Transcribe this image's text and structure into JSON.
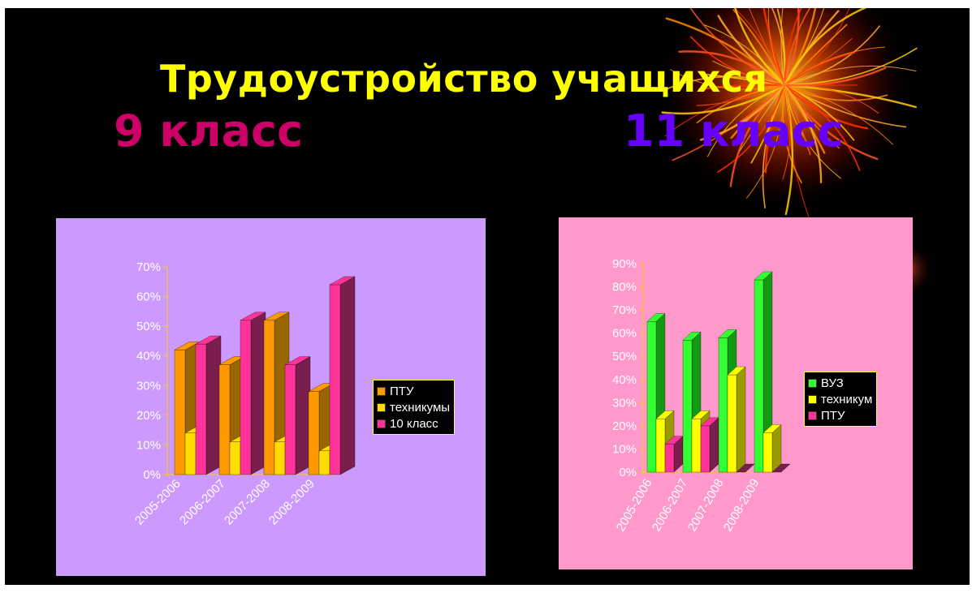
{
  "slide": {
    "title": "Трудоустройство учащихся",
    "subtitle_left": "9 класс",
    "subtitle_right": "11 класс",
    "colors": {
      "background": "#000000",
      "title": "#ffff00",
      "subtitle_left": "#cc0066",
      "subtitle_right": "#6600ff"
    }
  },
  "chart_data": [
    {
      "type": "bar",
      "style": "3d-column",
      "background": "#cc99ff",
      "legend_position": "right",
      "grid": false,
      "ylim": [
        0,
        0.7
      ],
      "yticks": [
        "0%",
        "10%",
        "20%",
        "30%",
        "40%",
        "50%",
        "60%",
        "70%"
      ],
      "categories": [
        "2005-2006",
        "2006-2007",
        "2007-2008",
        "2008-2009"
      ],
      "series": [
        {
          "name": "ПТУ",
          "values": [
            0.42,
            0.37,
            0.52,
            0.28
          ],
          "color": "#ff9900",
          "side": "#996600"
        },
        {
          "name": "техникумы",
          "values": [
            0.14,
            0.11,
            0.11,
            0.08
          ],
          "color": "#ffdd00",
          "side": "#b39b00"
        },
        {
          "name": "10 класс",
          "values": [
            0.44,
            0.52,
            0.37,
            0.64
          ],
          "color": "#ff3399",
          "side": "#7a1f4d"
        }
      ]
    },
    {
      "type": "bar",
      "style": "3d-column",
      "background": "#ff99cc",
      "legend_position": "right",
      "grid": false,
      "ylim": [
        0,
        0.9
      ],
      "yticks": [
        "0%",
        "10%",
        "20%",
        "30%",
        "40%",
        "50%",
        "60%",
        "70%",
        "80%",
        "90%"
      ],
      "categories": [
        "2005-2006",
        "2006-2007",
        "2007-2008",
        "2008-2009"
      ],
      "series": [
        {
          "name": "ВУЗ",
          "values": [
            0.65,
            0.57,
            0.58,
            0.83
          ],
          "color": "#33ff33",
          "side": "#119911"
        },
        {
          "name": "техникум",
          "values": [
            0.23,
            0.23,
            0.42,
            0.17
          ],
          "color": "#ffff00",
          "side": "#999900"
        },
        {
          "name": "ПТУ",
          "values": [
            0.12,
            0.2,
            0.0,
            0.0
          ],
          "color": "#ff3399",
          "side": "#7a1f4d"
        }
      ]
    }
  ]
}
